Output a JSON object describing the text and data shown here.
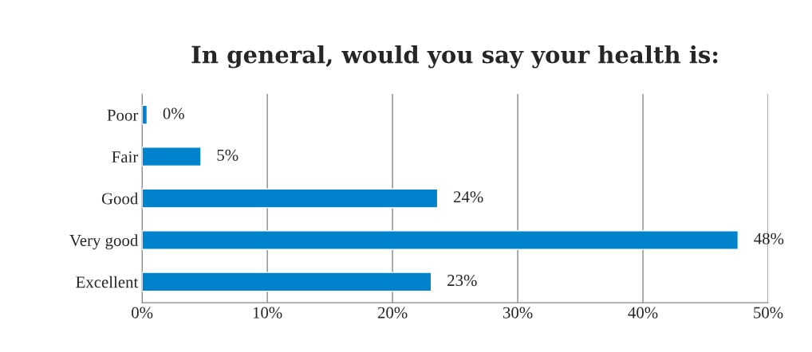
{
  "chart_data": {
    "type": "bar",
    "orientation": "horizontal",
    "title": "In general, would you say your health is:",
    "categories": [
      "Poor",
      "Fair",
      "Good",
      "Very good",
      "Excellent"
    ],
    "values": [
      0.4,
      4.7,
      23.6,
      47.6,
      23.1
    ],
    "value_labels": [
      "0%",
      "5%",
      "24%",
      "48%",
      "23%"
    ],
    "color": "#0083cc",
    "xlim": [
      0,
      50
    ],
    "xticks": [
      {
        "value": 0,
        "label": "0%"
      },
      {
        "value": 10,
        "label": "10%"
      },
      {
        "value": 20,
        "label": "20%"
      },
      {
        "value": 30,
        "label": "30%"
      },
      {
        "value": 40,
        "label": "40%"
      },
      {
        "value": 50,
        "label": "50%"
      }
    ],
    "grid": "x"
  }
}
